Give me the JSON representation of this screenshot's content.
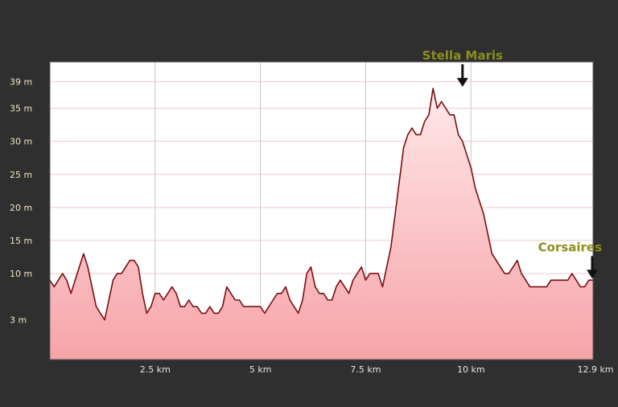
{
  "chart_data": {
    "type": "area",
    "title": "",
    "xlabel": "",
    "ylabel": "",
    "xlim": [
      0,
      12.9
    ],
    "ylim": [
      -3,
      42
    ],
    "x_ticks": [
      {
        "value": 2.5,
        "label": "2.5 km"
      },
      {
        "value": 5,
        "label": "5 km"
      },
      {
        "value": 7.5,
        "label": "7.5 km"
      },
      {
        "value": 10,
        "label": "10 km"
      },
      {
        "value": 12.9,
        "label": "12.9 km"
      }
    ],
    "y_ticks": [
      {
        "value": 3,
        "label": "3 m"
      },
      {
        "value": 10,
        "label": "10 m"
      },
      {
        "value": 15,
        "label": "15 m"
      },
      {
        "value": 20,
        "label": "20 m"
      },
      {
        "value": 25,
        "label": "25 m"
      },
      {
        "value": 30,
        "label": "30 m"
      },
      {
        "value": 35,
        "label": "35 m"
      },
      {
        "value": 39,
        "label": "39 m"
      }
    ],
    "grid": true,
    "colors": {
      "line": "#7a0e12",
      "fill_top": "#ffe8ea",
      "fill_bottom": "#f6a4a8",
      "plot_bg": "#ffffff",
      "grid": "#c8c8c8",
      "arrow": "#111111"
    },
    "series": [
      {
        "x": [
          0.0,
          0.1,
          0.2,
          0.3,
          0.4,
          0.5,
          0.6,
          0.7,
          0.8,
          0.9,
          1.0,
          1.1,
          1.2,
          1.3,
          1.4,
          1.5,
          1.6,
          1.7,
          1.8,
          1.9,
          2.0,
          2.1,
          2.2,
          2.3,
          2.4,
          2.5,
          2.6,
          2.7,
          2.8,
          2.9,
          3.0,
          3.1,
          3.2,
          3.3,
          3.4,
          3.5,
          3.6,
          3.7,
          3.8,
          3.9,
          4.0,
          4.1,
          4.2,
          4.3,
          4.4,
          4.5,
          4.6,
          4.7,
          4.8,
          4.9,
          5.0,
          5.1,
          5.2,
          5.3,
          5.4,
          5.5,
          5.6,
          5.7,
          5.8,
          5.9,
          6.0,
          6.1,
          6.2,
          6.3,
          6.4,
          6.5,
          6.6,
          6.7,
          6.8,
          6.9,
          7.0,
          7.1,
          7.2,
          7.3,
          7.4,
          7.5,
          7.6,
          7.7,
          7.8,
          7.9,
          8.0,
          8.1,
          8.2,
          8.3,
          8.4,
          8.5,
          8.6,
          8.7,
          8.8,
          8.9,
          9.0,
          9.1,
          9.2,
          9.3,
          9.4,
          9.5,
          9.6,
          9.7,
          9.8,
          9.9,
          10.0,
          10.1,
          10.2,
          10.3,
          10.4,
          10.5,
          10.6,
          10.7,
          10.8,
          10.9,
          11.0,
          11.1,
          11.2,
          11.3,
          11.4,
          11.5,
          11.6,
          11.7,
          11.8,
          11.9,
          12.0,
          12.1,
          12.2,
          12.3,
          12.4,
          12.5,
          12.6,
          12.7,
          12.8,
          12.9
        ],
        "y": [
          9,
          8,
          9,
          10,
          9,
          7,
          9,
          11,
          13,
          11,
          8,
          5,
          4,
          3,
          6,
          9,
          10,
          10,
          11,
          12,
          12,
          11,
          7,
          4,
          5,
          7,
          7,
          6,
          7,
          8,
          7,
          5,
          5,
          6,
          5,
          5,
          4,
          4,
          5,
          4,
          4,
          5,
          8,
          7,
          6,
          6,
          5,
          5,
          5,
          5,
          5,
          4,
          5,
          6,
          7,
          7,
          8,
          6,
          5,
          4,
          6,
          10,
          11,
          8,
          7,
          7,
          6,
          6,
          8,
          9,
          8,
          7,
          9,
          10,
          11,
          9,
          10,
          10,
          10,
          8,
          11,
          14,
          19,
          24,
          29,
          31,
          32,
          31,
          31,
          33,
          34,
          38,
          35,
          36,
          35,
          34,
          34,
          31,
          30,
          28,
          26,
          23,
          21,
          19,
          16,
          13,
          12,
          11,
          10,
          10,
          11,
          12,
          10,
          9,
          8,
          8,
          8,
          8,
          8,
          9,
          9,
          9,
          9,
          9,
          10,
          9,
          8,
          8,
          9,
          9
        ]
      }
    ],
    "annotations": [
      {
        "label": "Stella Maris",
        "x": 9.8,
        "y": 38
      },
      {
        "label": "Corsaires",
        "x": 12.9,
        "y": 9
      }
    ]
  }
}
